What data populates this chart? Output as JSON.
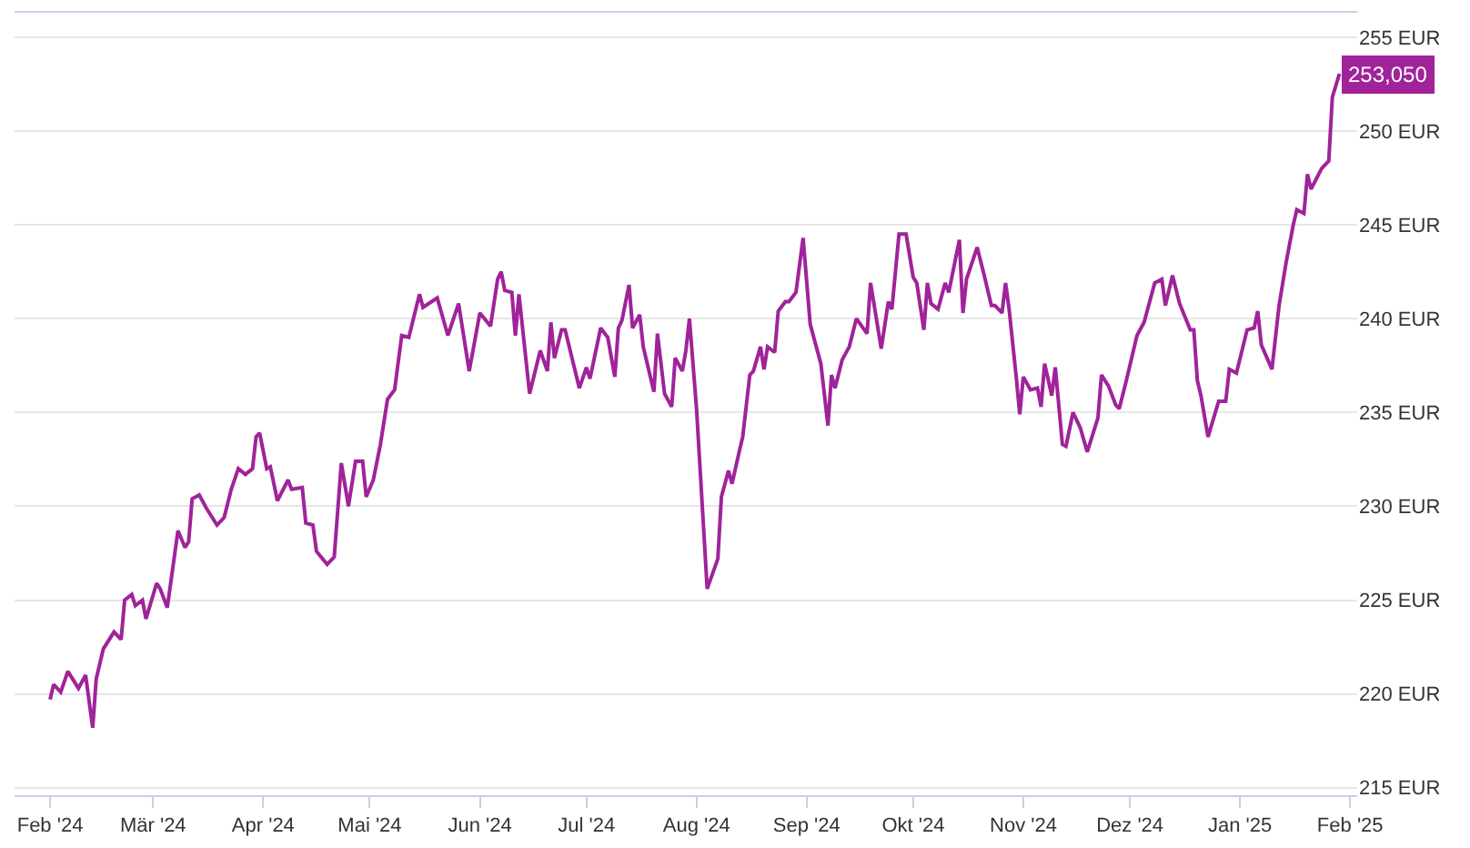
{
  "chart_data": {
    "type": "line",
    "x": [
      "2024-02-01",
      "2024-02-02",
      "2024-02-04",
      "2024-02-06",
      "2024-02-09",
      "2024-02-11",
      "2024-02-13",
      "2024-02-14",
      "2024-02-16",
      "2024-02-19",
      "2024-02-21",
      "2024-02-22",
      "2024-02-24",
      "2024-02-25",
      "2024-02-27",
      "2024-02-28",
      "2024-03-02",
      "2024-03-03",
      "2024-03-05",
      "2024-03-08",
      "2024-03-10",
      "2024-03-11",
      "2024-03-12",
      "2024-03-14",
      "2024-03-16",
      "2024-03-19",
      "2024-03-21",
      "2024-03-23",
      "2024-03-25",
      "2024-03-27",
      "2024-03-29",
      "2024-03-30",
      "2024-03-31",
      "2024-04-02",
      "2024-04-03",
      "2024-04-05",
      "2024-04-08",
      "2024-04-09",
      "2024-04-12",
      "2024-04-13",
      "2024-04-15",
      "2024-04-16",
      "2024-04-19",
      "2024-04-21",
      "2024-04-23",
      "2024-04-25",
      "2024-04-27",
      "2024-04-29",
      "2024-04-30",
      "2024-05-02",
      "2024-05-04",
      "2024-05-06",
      "2024-05-08",
      "2024-05-10",
      "2024-05-12",
      "2024-05-15",
      "2024-05-16",
      "2024-05-20",
      "2024-05-23",
      "2024-05-26",
      "2024-05-29",
      "2024-06-01",
      "2024-06-04",
      "2024-06-06",
      "2024-06-07",
      "2024-06-08",
      "2024-06-10",
      "2024-06-11",
      "2024-06-12",
      "2024-06-15",
      "2024-06-18",
      "2024-06-20",
      "2024-06-21",
      "2024-06-22",
      "2024-06-24",
      "2024-06-25",
      "2024-06-29",
      "2024-07-01",
      "2024-07-02",
      "2024-07-05",
      "2024-07-07",
      "2024-07-09",
      "2024-07-10",
      "2024-07-11",
      "2024-07-13",
      "2024-07-14",
      "2024-07-16",
      "2024-07-17",
      "2024-07-20",
      "2024-07-21",
      "2024-07-23",
      "2024-07-25",
      "2024-07-26",
      "2024-07-28",
      "2024-07-29",
      "2024-07-30",
      "2024-08-01",
      "2024-08-04",
      "2024-08-07",
      "2024-08-08",
      "2024-08-10",
      "2024-08-11",
      "2024-08-13",
      "2024-08-14",
      "2024-08-16",
      "2024-08-17",
      "2024-08-19",
      "2024-08-20",
      "2024-08-21",
      "2024-08-23",
      "2024-08-24",
      "2024-08-26",
      "2024-08-27",
      "2024-08-29",
      "2024-08-31",
      "2024-09-02",
      "2024-09-05",
      "2024-09-07",
      "2024-09-08",
      "2024-09-09",
      "2024-09-11",
      "2024-09-13",
      "2024-09-15",
      "2024-09-18",
      "2024-09-19",
      "2024-09-22",
      "2024-09-24",
      "2024-09-25",
      "2024-09-27",
      "2024-09-29",
      "2024-10-01",
      "2024-10-02",
      "2024-10-04",
      "2024-10-05",
      "2024-10-06",
      "2024-10-08",
      "2024-10-10",
      "2024-10-11",
      "2024-10-14",
      "2024-10-15",
      "2024-10-16",
      "2024-10-19",
      "2024-10-21",
      "2024-10-23",
      "2024-10-24",
      "2024-10-26",
      "2024-10-27",
      "2024-10-28",
      "2024-10-30",
      "2024-10-31",
      "2024-11-01",
      "2024-11-03",
      "2024-11-05",
      "2024-11-06",
      "2024-11-07",
      "2024-11-09",
      "2024-11-10",
      "2024-11-12",
      "2024-11-13",
      "2024-11-15",
      "2024-11-17",
      "2024-11-19",
      "2024-11-22",
      "2024-11-23",
      "2024-11-25",
      "2024-11-27",
      "2024-11-28",
      "2024-11-30",
      "2024-12-03",
      "2024-12-05",
      "2024-12-08",
      "2024-12-10",
      "2024-12-11",
      "2024-12-13",
      "2024-12-15",
      "2024-12-18",
      "2024-12-19",
      "2024-12-20",
      "2024-12-21",
      "2024-12-23",
      "2024-12-26",
      "2024-12-28",
      "2024-12-29",
      "2024-12-31",
      "2025-01-03",
      "2025-01-05",
      "2025-01-06",
      "2025-01-07",
      "2025-01-10",
      "2025-01-12",
      "2025-01-14",
      "2025-01-16",
      "2025-01-17",
      "2025-01-19",
      "2025-01-20",
      "2025-01-21",
      "2025-01-24",
      "2025-01-26",
      "2025-01-27",
      "2025-01-29"
    ],
    "series": [
      {
        "color": "#a0239a",
        "values": [
          219.7,
          220.5,
          220.1,
          221.2,
          220.3,
          221.0,
          218.2,
          220.8,
          222.4,
          223.3,
          222.9,
          225.0,
          225.3,
          224.7,
          225.0,
          224.0,
          225.9,
          225.6,
          224.6,
          228.7,
          227.8,
          228.1,
          230.4,
          230.6,
          229.9,
          229.0,
          229.4,
          230.9,
          232.0,
          231.7,
          232.0,
          233.7,
          233.9,
          232.0,
          232.1,
          230.3,
          231.4,
          230.9,
          231.0,
          229.1,
          229.0,
          227.6,
          226.9,
          227.3,
          232.3,
          230.0,
          232.4,
          232.4,
          230.5,
          231.4,
          233.3,
          235.7,
          236.2,
          239.1,
          239.0,
          241.3,
          240.6,
          241.1,
          239.1,
          240.8,
          237.2,
          240.3,
          239.6,
          242.1,
          242.5,
          241.5,
          241.4,
          239.1,
          241.3,
          236.0,
          238.3,
          237.2,
          239.8,
          237.9,
          239.4,
          239.4,
          236.3,
          237.4,
          236.8,
          239.5,
          239.0,
          236.9,
          239.5,
          239.9,
          241.8,
          239.5,
          240.2,
          238.5,
          236.1,
          239.2,
          236.0,
          235.3,
          237.9,
          237.2,
          238.3,
          240.0,
          235.2,
          225.6,
          227.2,
          230.5,
          231.9,
          231.2,
          232.9,
          233.7,
          237.0,
          237.2,
          238.5,
          237.3,
          238.5,
          238.2,
          240.4,
          240.9,
          240.9,
          241.4,
          244.3,
          239.7,
          237.6,
          234.3,
          237.0,
          236.3,
          237.8,
          238.5,
          240.0,
          239.2,
          241.9,
          238.4,
          240.9,
          240.5,
          244.5,
          244.5,
          242.2,
          241.9,
          239.4,
          241.9,
          240.8,
          240.5,
          241.9,
          241.4,
          244.2,
          240.3,
          242.1,
          243.8,
          242.3,
          240.7,
          240.7,
          240.3,
          241.9,
          240.5,
          236.9,
          234.9,
          236.9,
          236.2,
          236.3,
          235.3,
          237.6,
          235.9,
          237.4,
          233.3,
          233.2,
          235.0,
          234.2,
          232.9,
          234.7,
          237.0,
          236.4,
          235.4,
          235.2,
          236.7,
          239.1,
          239.8,
          241.9,
          242.1,
          240.7,
          242.3,
          240.8,
          239.4,
          239.4,
          236.7,
          235.9,
          233.7,
          235.6,
          235.6,
          237.3,
          237.1,
          239.4,
          239.5,
          240.4,
          238.6,
          237.3,
          240.7,
          243.0,
          245.0,
          245.8,
          245.6,
          247.7,
          246.9,
          248.0,
          248.4,
          251.8,
          253.05
        ]
      }
    ],
    "xlim": [
      "2024-01-22",
      "2025-02-03"
    ],
    "xticks": [
      {
        "value": "2024-02-01",
        "label": "Feb '24"
      },
      {
        "value": "2024-03-01",
        "label": "Mär '24"
      },
      {
        "value": "2024-04-01",
        "label": "Apr '24"
      },
      {
        "value": "2024-05-01",
        "label": "Mai '24"
      },
      {
        "value": "2024-06-01",
        "label": "Jun '24"
      },
      {
        "value": "2024-07-01",
        "label": "Jul '24"
      },
      {
        "value": "2024-08-01",
        "label": "Aug '24"
      },
      {
        "value": "2024-09-01",
        "label": "Sep '24"
      },
      {
        "value": "2024-10-01",
        "label": "Okt '24"
      },
      {
        "value": "2024-11-01",
        "label": "Nov '24"
      },
      {
        "value": "2024-12-01",
        "label": "Dez '24"
      },
      {
        "value": "2025-01-01",
        "label": "Jan '25"
      },
      {
        "value": "2025-02-01",
        "label": "Feb '25"
      }
    ],
    "ylim": [
      214.6,
      256.3
    ],
    "yticks": [
      {
        "value": 215,
        "label": "215 EUR"
      },
      {
        "value": 220,
        "label": "220 EUR"
      },
      {
        "value": 225,
        "label": "225 EUR"
      },
      {
        "value": 230,
        "label": "230 EUR"
      },
      {
        "value": 235,
        "label": "235 EUR"
      },
      {
        "value": 240,
        "label": "240 EUR"
      },
      {
        "value": 245,
        "label": "245 EUR"
      },
      {
        "value": 250,
        "label": "250 EUR"
      },
      {
        "value": 255,
        "label": "255 EUR"
      }
    ],
    "grid": "y",
    "line_style": "solid",
    "annotations": [
      {
        "text": "253,050",
        "x": "2025-01-29",
        "y": 253.05
      }
    ]
  }
}
